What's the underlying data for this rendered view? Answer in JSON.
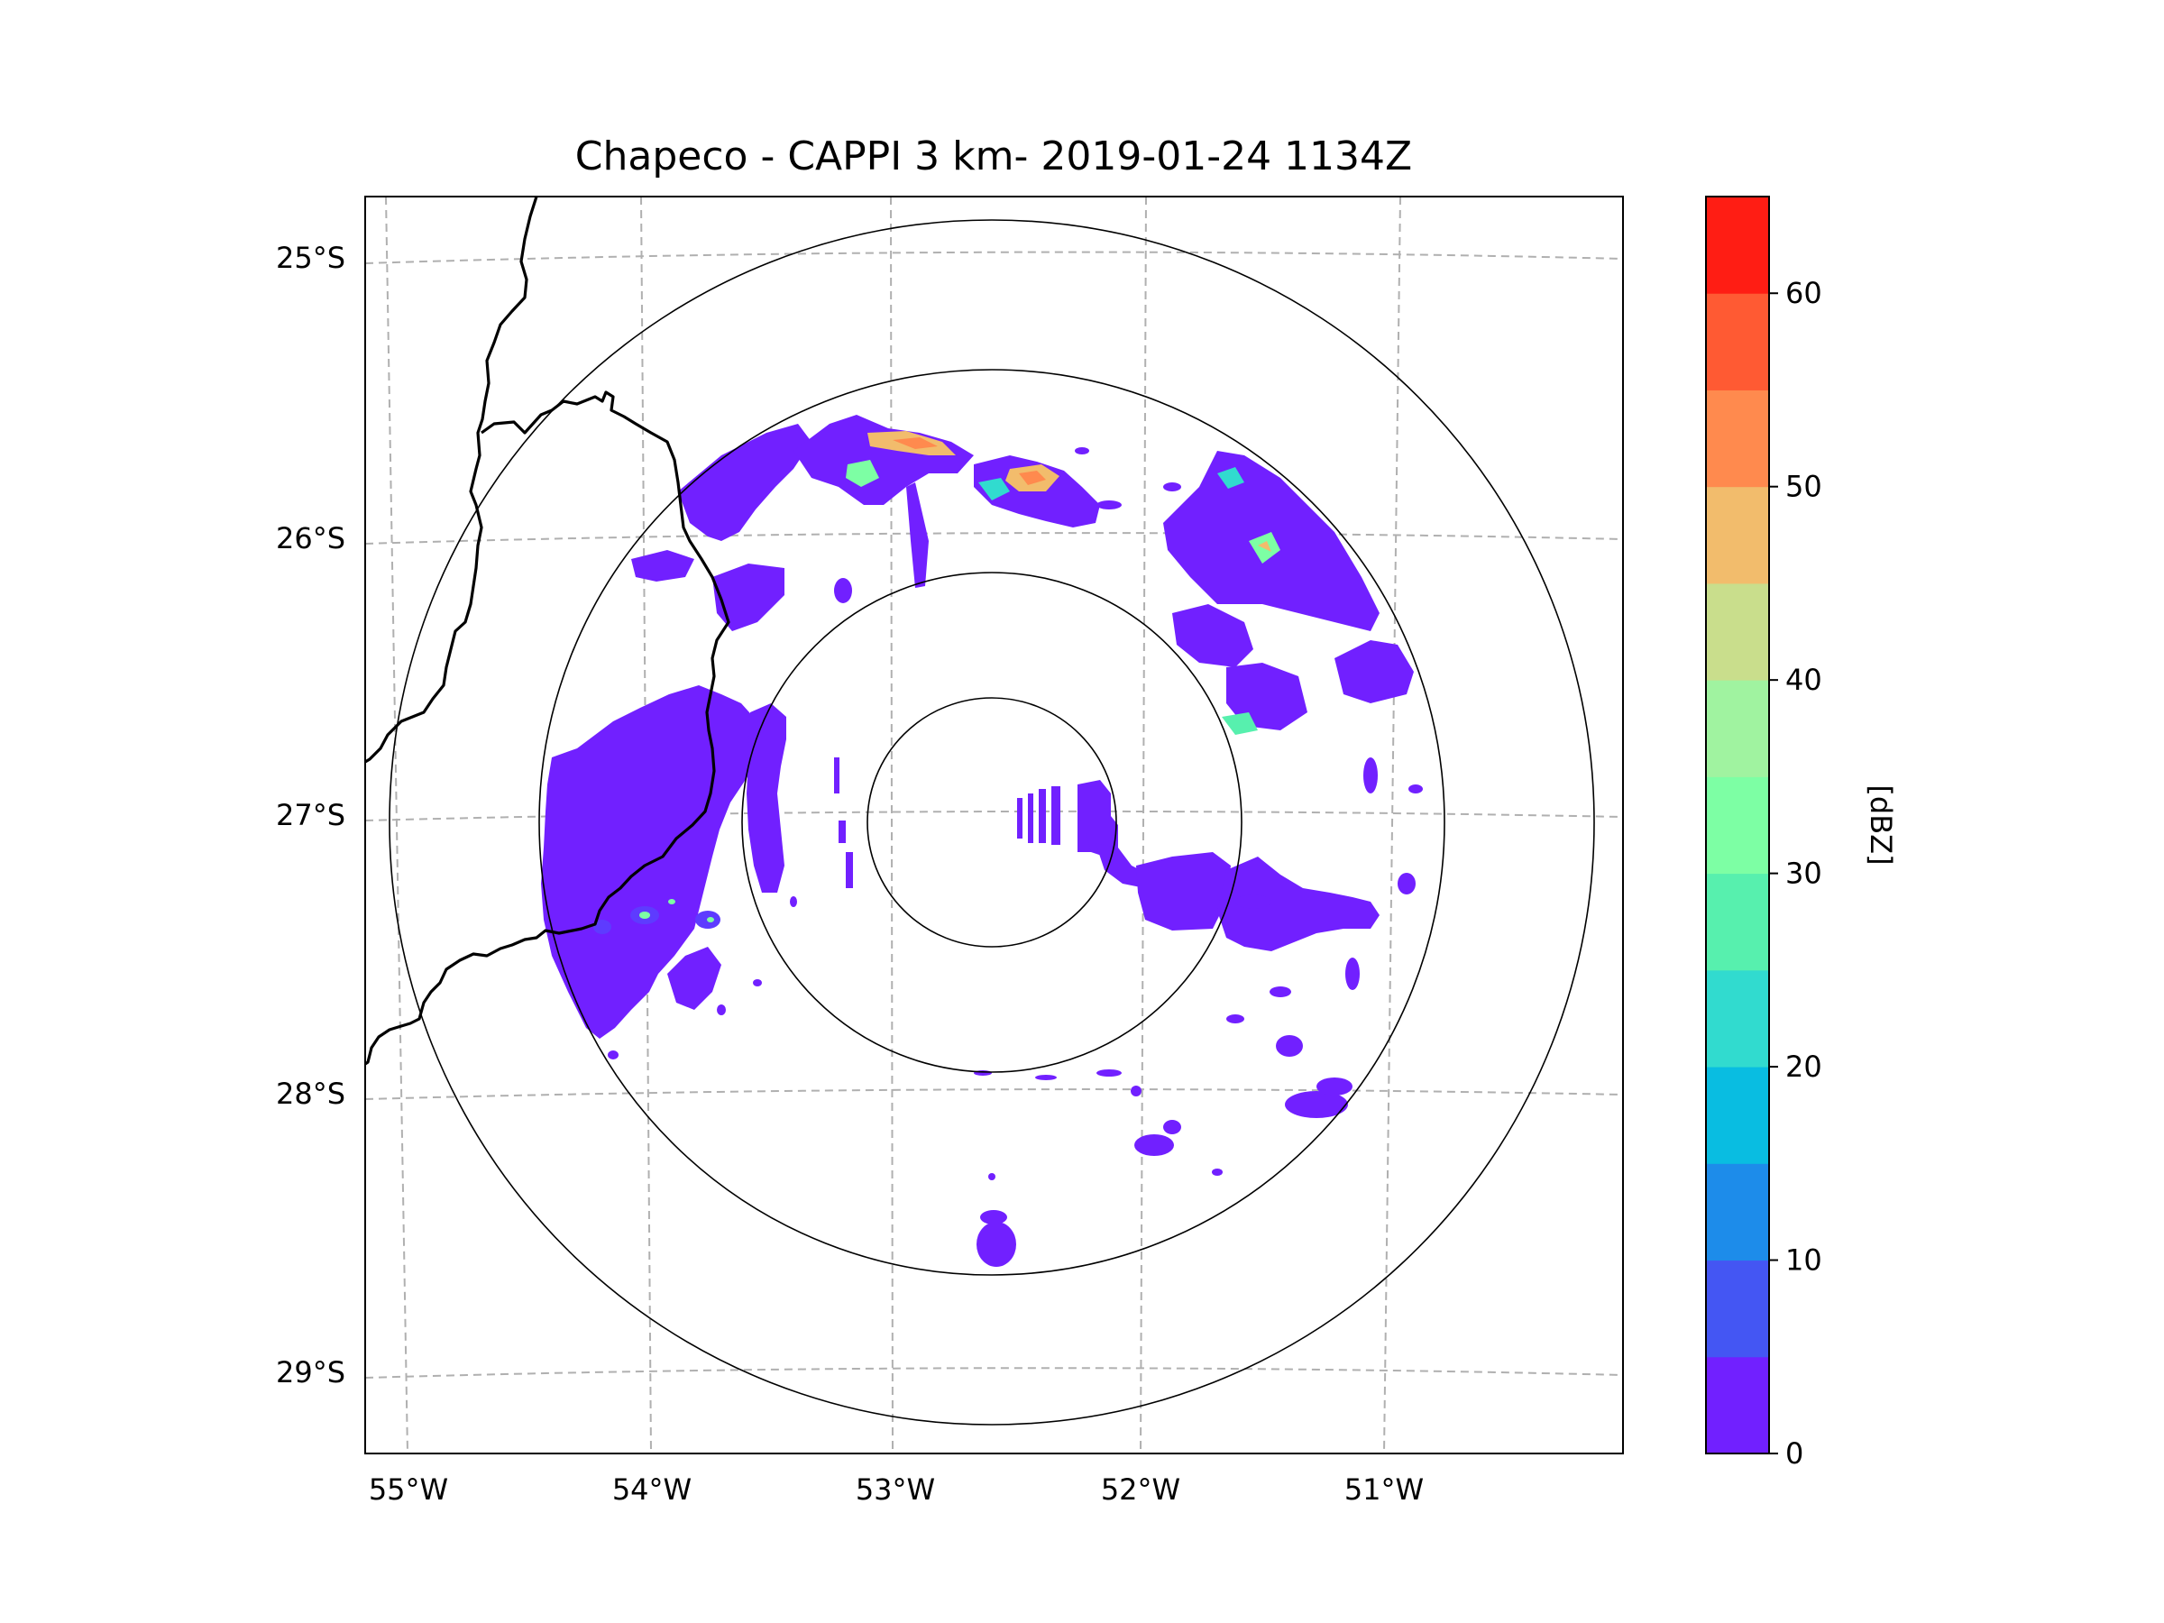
{
  "title": "Chapeco - CAPPI 3 km- 2019-01-24 1134Z",
  "map": {
    "lon_ticks": [
      "55°W",
      "54°W",
      "53°W",
      "52°W",
      "51°W"
    ],
    "lat_ticks": [
      "25°S",
      "26°S",
      "27°S",
      "28°S",
      "29°S"
    ],
    "range_rings_count": 4,
    "gridline_style": "dashed-gray"
  },
  "colorbar": {
    "label": "[dBZ]",
    "min": 0,
    "max": 65,
    "step": 5,
    "tick_values": [
      0,
      10,
      20,
      30,
      40,
      50,
      60
    ],
    "tick_labels": [
      "0",
      "10",
      "20",
      "30",
      "40",
      "50",
      "60"
    ],
    "colors": [
      "#7120FF",
      "#4456F3",
      "#1D8CEA",
      "#09BDE1",
      "#31DBCF",
      "#57F0AE",
      "#7DFFA4",
      "#A0F3A0",
      "#C9DE8C",
      "#F2BC6C",
      "#FF8A4E",
      "#FF5A33",
      "#FF1D14"
    ]
  },
  "colors": {
    "border_line": "#000000",
    "grid": "#b0b0b0",
    "main_echo": "#7120FF"
  }
}
